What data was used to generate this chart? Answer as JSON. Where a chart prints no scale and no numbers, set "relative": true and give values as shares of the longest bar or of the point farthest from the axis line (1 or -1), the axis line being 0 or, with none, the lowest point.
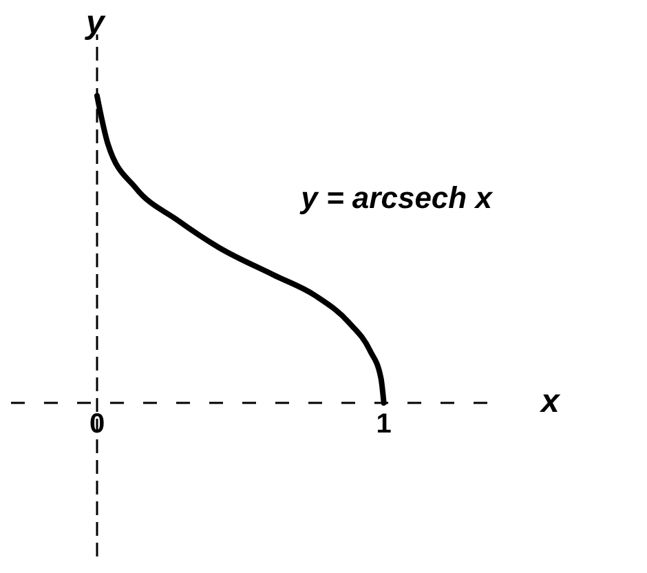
{
  "chart_data": {
    "type": "line",
    "xlabel": "x",
    "ylabel": "y",
    "relative": true,
    "xlim": [
      -0.3,
      1.38
    ],
    "xticks": [
      0,
      1
    ],
    "series": [
      {
        "name": "y = arcsech x",
        "color": "#000000",
        "x": [
          0,
          0.038,
          0.135,
          0.279,
          0.423,
          0.615,
          0.76,
          0.88,
          0.952,
          0.99,
          1
        ],
        "values": [
          1,
          0.843,
          0.7,
          0.596,
          0.507,
          0.417,
          0.35,
          0.26,
          0.17,
          0.08,
          0
        ]
      }
    ]
  }
}
